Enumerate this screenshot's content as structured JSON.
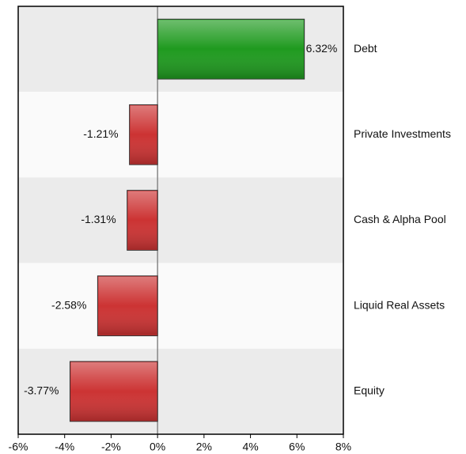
{
  "chart_data": {
    "type": "hbar",
    "categories": [
      "Debt",
      "Private Investments",
      "Cash & Alpha Pool",
      "Liquid Real Assets",
      "Equity"
    ],
    "values": [
      6.32,
      -1.21,
      -1.31,
      -2.58,
      -3.77
    ],
    "value_labels": [
      "6.32%",
      "-1.21%",
      "-1.31%",
      "-2.58%",
      "-3.77%"
    ],
    "colors": [
      "#1f9a1f",
      "#cc3333",
      "#cc3333",
      "#cc3333",
      "#cc3333"
    ],
    "xlim": [
      -6,
      8
    ],
    "xticks": [
      {
        "value": -6,
        "label": "-6%"
      },
      {
        "value": -4,
        "label": "-4%"
      },
      {
        "value": -2,
        "label": "-2%"
      },
      {
        "value": 0,
        "label": "0%"
      },
      {
        "value": 2,
        "label": "2%"
      },
      {
        "value": 4,
        "label": "4%"
      },
      {
        "value": 6,
        "label": "6%"
      },
      {
        "value": 8,
        "label": "8%"
      }
    ]
  }
}
